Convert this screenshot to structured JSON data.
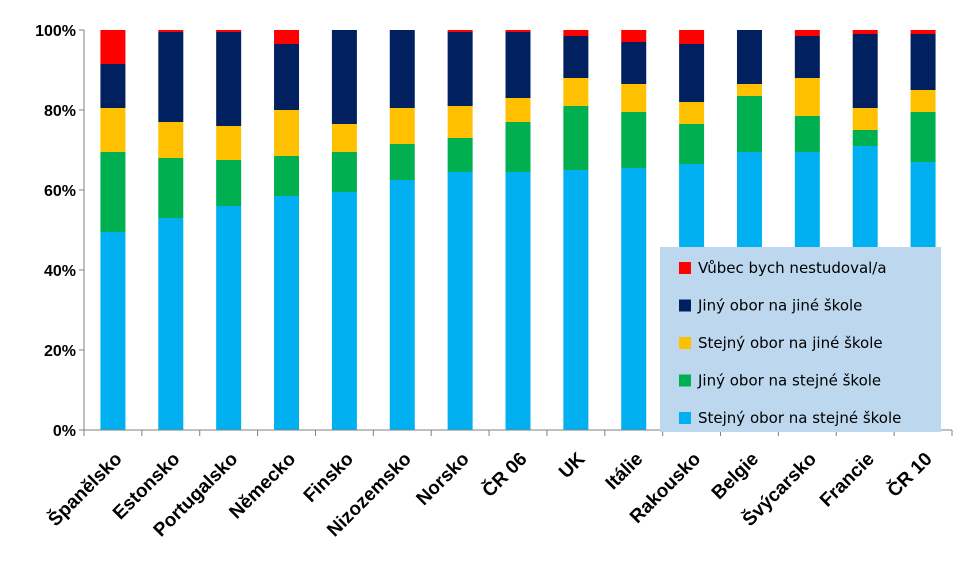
{
  "chart_data": {
    "type": "bar",
    "stacked": true,
    "percent": true,
    "categories": [
      "Španělsko",
      "Estonsko",
      "Portugalsko",
      "Německo",
      "Finsko",
      "Nizozemsko",
      "Norsko",
      "ČR 06",
      "UK",
      "Itálie",
      "Rakousko",
      "Belgie",
      "Švýcarsko",
      "Francie",
      "ČR 10"
    ],
    "series": [
      {
        "name": "Stejný obor na stejné škole",
        "color": "#00B0F0",
        "values": [
          49.5,
          53,
          56,
          58.5,
          59.5,
          62.5,
          64.5,
          64.5,
          65,
          65.5,
          66.5,
          69.5,
          69.5,
          71,
          67
        ]
      },
      {
        "name": "Jiný obor na stejné škole",
        "color": "#00B050",
        "values": [
          20,
          15,
          11.5,
          10,
          10,
          9,
          8.5,
          12.5,
          16,
          14,
          10,
          14,
          9,
          4,
          12.5
        ]
      },
      {
        "name": "Stejný obor na jiné škole",
        "color": "#FFC000",
        "values": [
          11,
          9,
          8.5,
          11.5,
          7,
          9,
          8,
          6,
          7,
          7,
          5.5,
          3,
          9.5,
          5.5,
          5.5
        ]
      },
      {
        "name": "Jiný obor na jiné škole",
        "color": "#002060",
        "values": [
          11,
          22.5,
          23.5,
          16.5,
          23.5,
          19.5,
          18.5,
          16.5,
          10.5,
          10.5,
          14.5,
          13.5,
          10.5,
          18.5,
          14
        ]
      },
      {
        "name": "Vůbec bych nestudoval/a",
        "color": "#FF0000",
        "values": [
          8.5,
          0.5,
          0.5,
          3.5,
          0,
          0,
          0.5,
          0.5,
          1.5,
          3,
          3.5,
          0,
          1.5,
          1,
          1
        ]
      }
    ],
    "ylim": [
      0,
      100
    ],
    "yticks": [
      "0%",
      "20%",
      "40%",
      "60%",
      "80%",
      "100%"
    ],
    "legend_order": [
      4,
      3,
      2,
      1,
      0
    ],
    "legend_position": "right-inside",
    "legend_background": "#BDD7EE",
    "grid": false
  }
}
